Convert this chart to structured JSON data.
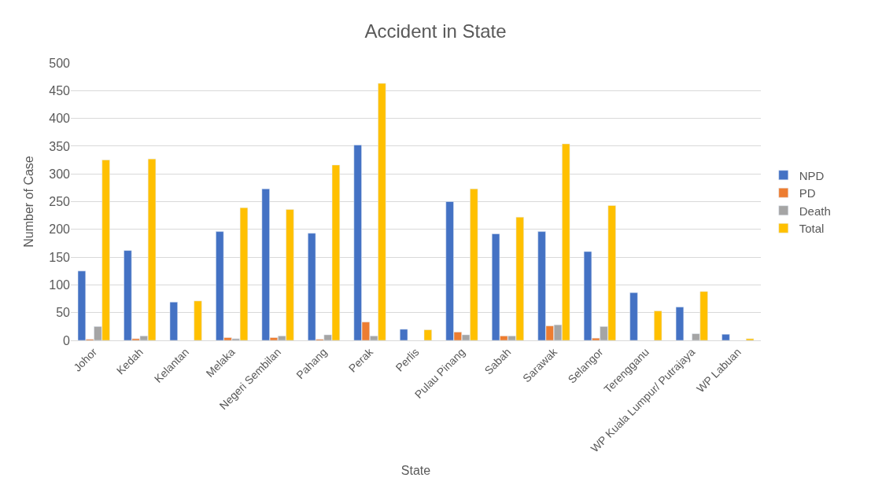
{
  "chart_data": {
    "type": "bar",
    "title": "Accident in State",
    "xlabel": "State",
    "ylabel": "Number of Case",
    "categories": [
      "Johor",
      "Kedah",
      "Kelantan",
      "Melaka",
      "Negeri Sembilan",
      "Pahang",
      "Perak",
      "Perlis",
      "Pulau Pinang",
      "Sabah",
      "Sarawak",
      "Selangor",
      "Terengganu",
      "WP Kuala Lumpur/ Putrajaya",
      "WP Labuan"
    ],
    "series": [
      {
        "name": "NPD",
        "color": "#4472c4",
        "values": [
          125,
          162,
          69,
          196,
          273,
          193,
          352,
          20,
          250,
          192,
          196,
          160,
          86,
          60,
          11
        ]
      },
      {
        "name": "PD",
        "color": "#ed7d31",
        "values": [
          2,
          3,
          null,
          5,
          5,
          2,
          33,
          null,
          15,
          8,
          26,
          4,
          null,
          null,
          null
        ]
      },
      {
        "name": "Death",
        "color": "#a5a5a5",
        "values": [
          25,
          8,
          null,
          3,
          8,
          10,
          8,
          null,
          10,
          8,
          28,
          25,
          null,
          12,
          null
        ]
      },
      {
        "name": "Total",
        "color": "#ffc000",
        "values": [
          325,
          327,
          71,
          239,
          236,
          316,
          463,
          19,
          273,
          222,
          354,
          243,
          53,
          88,
          3
        ]
      }
    ],
    "ylim": [
      0,
      500
    ],
    "yticks": [
      0,
      50,
      100,
      150,
      200,
      250,
      300,
      350,
      400,
      450,
      500
    ],
    "grid": "y",
    "legend": "right"
  }
}
